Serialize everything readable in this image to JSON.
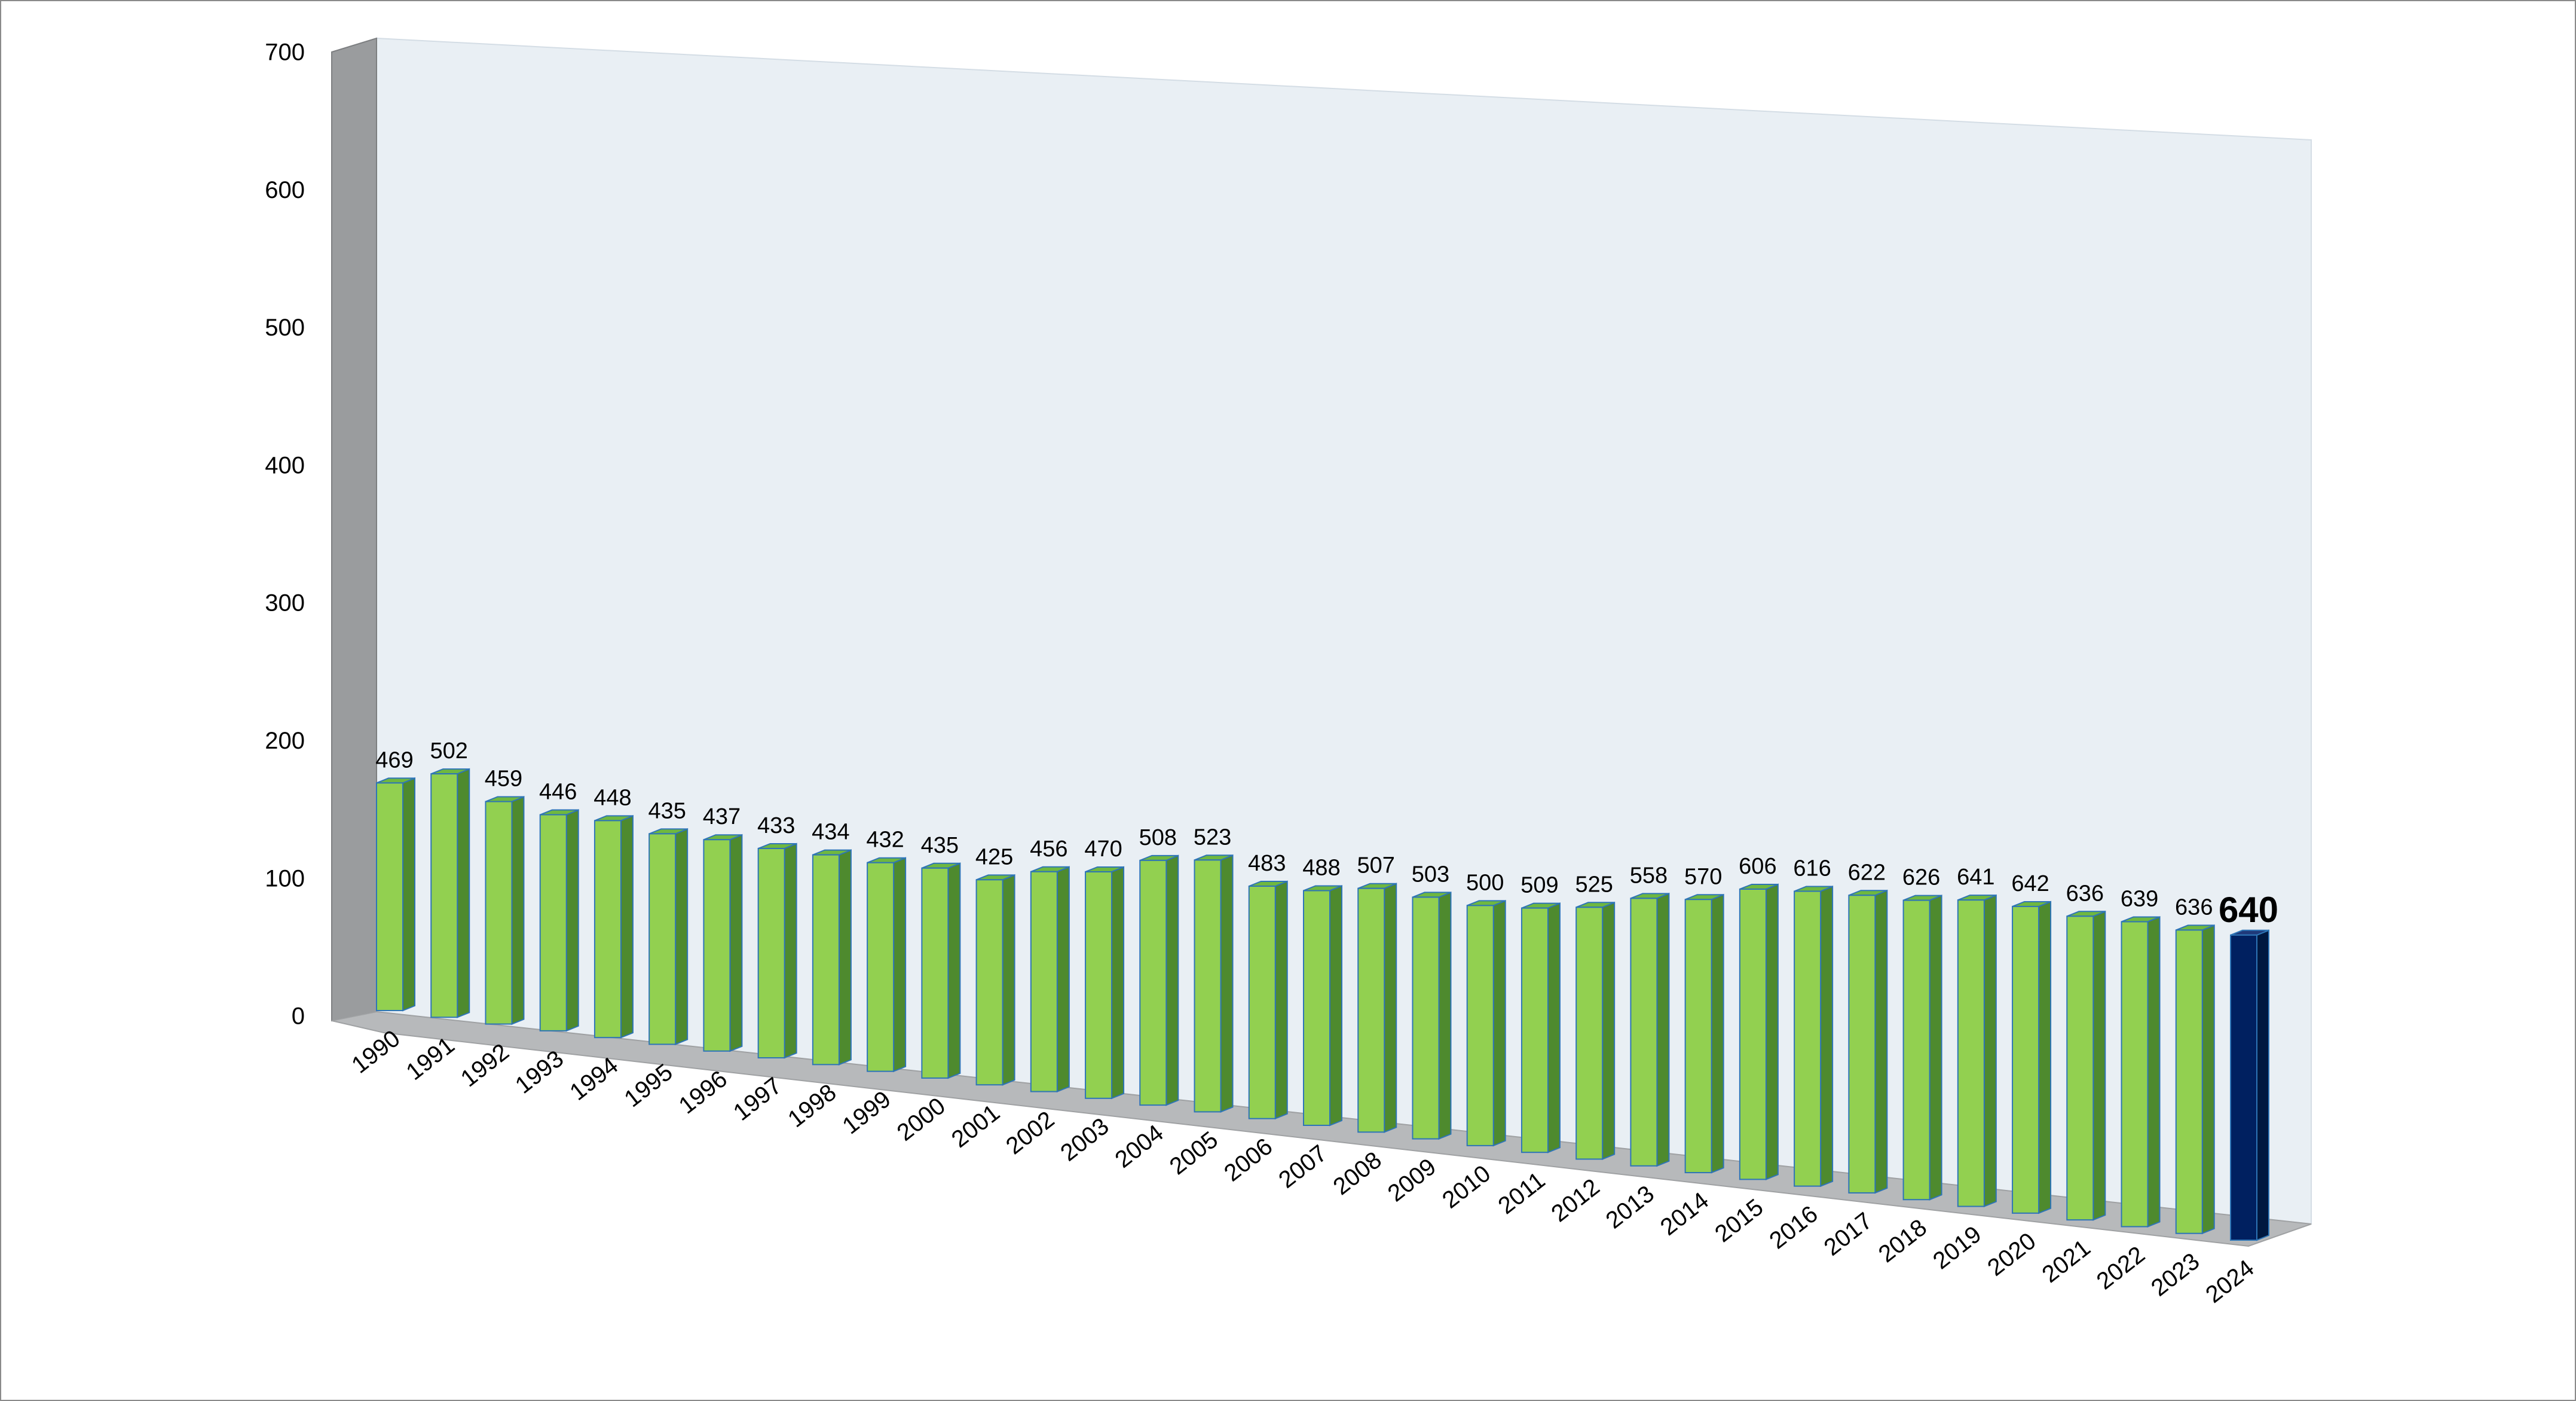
{
  "chart_data": {
    "type": "bar",
    "title": "",
    "xlabel": "",
    "ylabel": "",
    "ylim": [
      0,
      700
    ],
    "yticks": [
      0,
      100,
      200,
      300,
      400,
      500,
      600,
      700
    ],
    "grid": false,
    "legend": "none",
    "categories": [
      "1990",
      "1991",
      "1992",
      "1993",
      "1994",
      "1995",
      "1996",
      "1997",
      "1998",
      "1999",
      "2000",
      "2001",
      "2002",
      "2003",
      "2004",
      "2005",
      "2006",
      "2007",
      "2008",
      "2009",
      "2010",
      "2011",
      "2012",
      "2013",
      "2014",
      "2015",
      "2016",
      "2017",
      "2018",
      "2019",
      "2020",
      "2021",
      "2022",
      "2023",
      "2024"
    ],
    "series": [
      {
        "values": [
          469,
          502,
          459,
          446,
          448,
          435,
          437,
          433,
          434,
          432,
          435,
          425,
          456,
          470,
          508,
          523,
          483,
          488,
          507,
          503,
          500,
          509,
          525,
          558,
          570,
          606,
          616,
          622,
          626,
          641,
          642,
          636,
          639,
          636,
          640
        ]
      }
    ],
    "highlight_category": "2024",
    "colors": {
      "bar_front": "#92d050",
      "bar_side": "#4e8a2e",
      "bar_top": "#6fb83f",
      "bar_edge": "#2e75b6",
      "highlight_front": "#002060",
      "highlight_side": "#001840",
      "highlight_top": "#1f3a7a",
      "back_wall": "#e9eff4",
      "side_wall": "#9a9c9e",
      "floor": "#b7b9bb"
    }
  }
}
